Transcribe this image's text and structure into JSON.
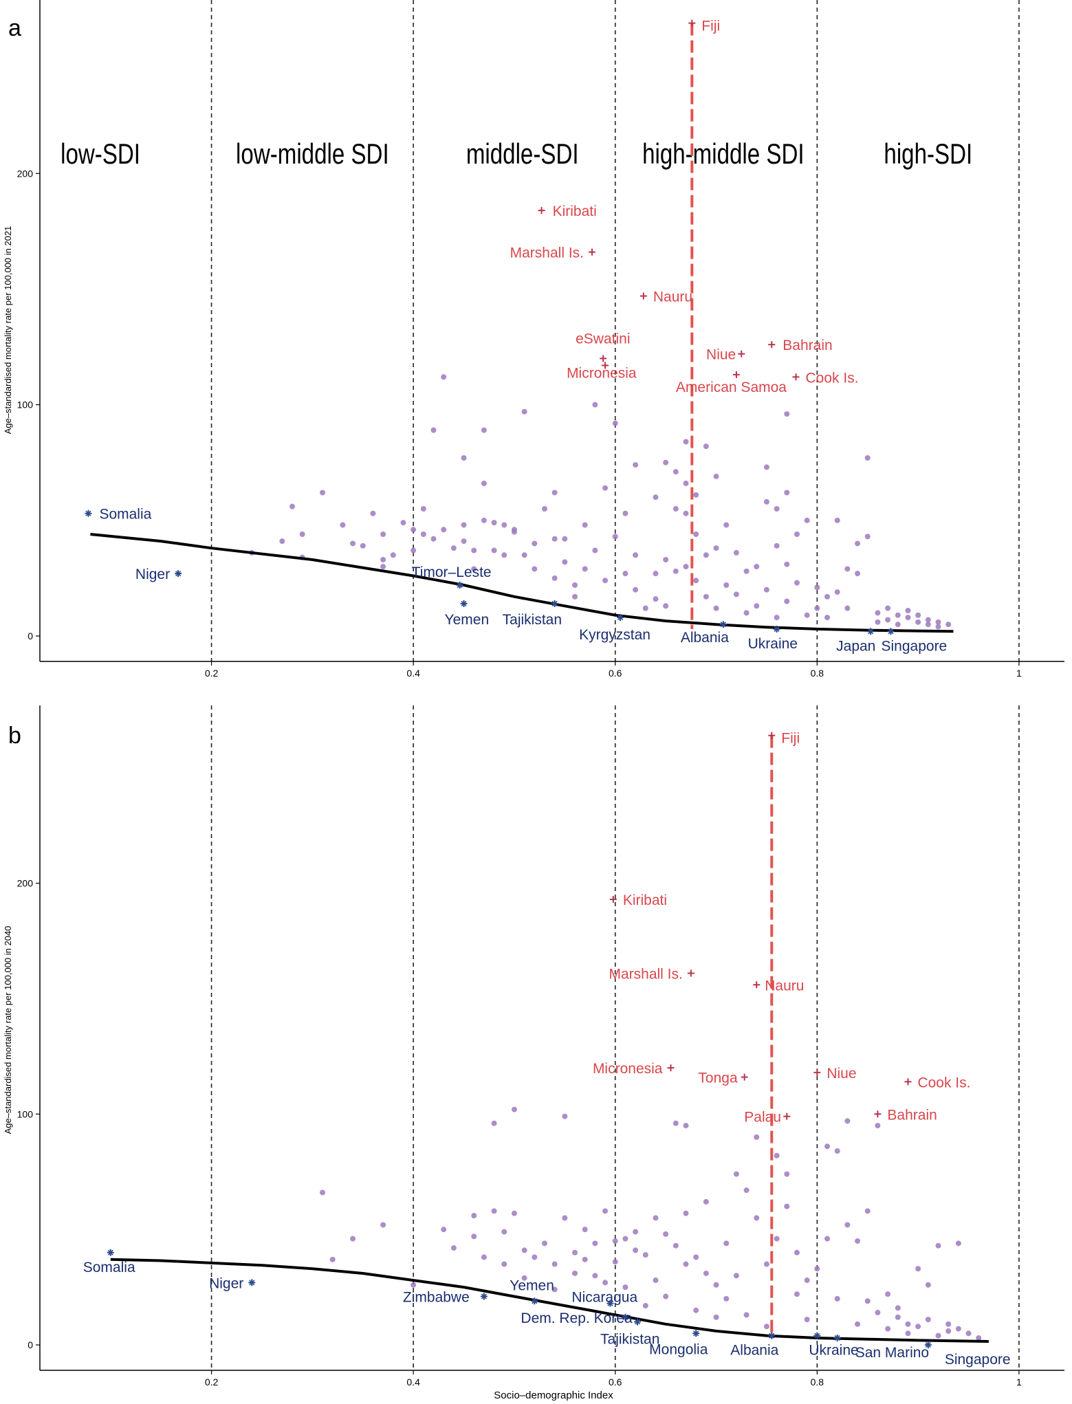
{
  "colors": {
    "grey_point": "#9d79bd",
    "red_label": "#d9474b",
    "red_marker": "#b8334a",
    "blue_label": "#1a2f6e",
    "blue_marker": "#2c4a8c",
    "fit_line": "#000000",
    "ref_line": "#e25450",
    "region_line": "#222222"
  },
  "x_axis": {
    "label": "Socio–demographic Index",
    "ticks": [
      {
        "v": 0.2,
        "label": "0.2"
      },
      {
        "v": 0.4,
        "label": "0.4"
      },
      {
        "v": 0.6,
        "label": "0.6"
      },
      {
        "v": 0.8,
        "label": "0.8"
      },
      {
        "v": 1.0,
        "label": "1"
      }
    ],
    "range": [
      0.03,
      1.045
    ],
    "sdi_boundaries": [
      0.2,
      0.4,
      0.6,
      0.8,
      1.0
    ]
  },
  "chart_data": [
    {
      "panel": "a",
      "type": "scatter",
      "ylabel": "Age–standardised mortality rate per 100,000 in 2021",
      "y_ticks": [
        {
          "v": 0,
          "label": "0"
        },
        {
          "v": 100,
          "label": "100"
        },
        {
          "v": 200,
          "label": "200"
        }
      ],
      "ylim": [
        -11,
        275
      ],
      "regions": [
        {
          "label": "low-SDI",
          "x": 0.09
        },
        {
          "label": "low-middle SDI",
          "x": 0.3
        },
        {
          "label": "middle-SDI",
          "x": 0.508
        },
        {
          "label": "high-middle SDI",
          "x": 0.707
        },
        {
          "label": "high-SDI",
          "x": 0.91
        }
      ],
      "reference_line": {
        "x": 0.676,
        "y0": 3,
        "y1": 265
      },
      "fit_line": [
        [
          0.08,
          44
        ],
        [
          0.15,
          41
        ],
        [
          0.2,
          38
        ],
        [
          0.3,
          33
        ],
        [
          0.4,
          26
        ],
        [
          0.45,
          22
        ],
        [
          0.5,
          17
        ],
        [
          0.55,
          13
        ],
        [
          0.6,
          9
        ],
        [
          0.65,
          6.5
        ],
        [
          0.7,
          5
        ],
        [
          0.75,
          3.8
        ],
        [
          0.8,
          3
        ],
        [
          0.85,
          2.5
        ],
        [
          0.9,
          2.2
        ],
        [
          0.935,
          2
        ]
      ],
      "labeled_high": [
        {
          "name": "Fiji",
          "x": 0.676,
          "y": 265
        },
        {
          "name": "Kiribati",
          "x": 0.527,
          "y": 184
        },
        {
          "name": "Marshall Is.",
          "x": 0.577,
          "y": 166
        },
        {
          "name": "Nauru",
          "x": 0.628,
          "y": 147
        },
        {
          "name": "eSwatini",
          "x": 0.588,
          "y": 120
        },
        {
          "name": "Micronesia",
          "x": 0.59,
          "y": 117
        },
        {
          "name": "Niue",
          "x": 0.725,
          "y": 122
        },
        {
          "name": "Bahrain",
          "x": 0.755,
          "y": 126
        },
        {
          "name": "American Samoa",
          "x": 0.72,
          "y": 113
        },
        {
          "name": "Cook Is.",
          "x": 0.779,
          "y": 112
        }
      ],
      "labeled_low": [
        {
          "name": "Somalia",
          "x": 0.078,
          "y": 53
        },
        {
          "name": "Niger",
          "x": 0.167,
          "y": 27
        },
        {
          "name": "Timor–Leste",
          "x": 0.446,
          "y": 22
        },
        {
          "name": "Yemen",
          "x": 0.45,
          "y": 14
        },
        {
          "name": "Tajikistan",
          "x": 0.54,
          "y": 14
        },
        {
          "name": "Kyrgyzstan",
          "x": 0.605,
          "y": 8
        },
        {
          "name": "Albania",
          "x": 0.707,
          "y": 5
        },
        {
          "name": "Ukraine",
          "x": 0.76,
          "y": 3
        },
        {
          "name": "Japan",
          "x": 0.853,
          "y": 2
        },
        {
          "name": "Singapore",
          "x": 0.873,
          "y": 2
        }
      ],
      "other_points": [
        [
          0.24,
          36
        ],
        [
          0.27,
          41
        ],
        [
          0.28,
          56
        ],
        [
          0.29,
          44
        ],
        [
          0.29,
          34
        ],
        [
          0.31,
          62
        ],
        [
          0.33,
          48
        ],
        [
          0.34,
          40
        ],
        [
          0.35,
          39
        ],
        [
          0.36,
          53
        ],
        [
          0.37,
          44
        ],
        [
          0.37,
          33
        ],
        [
          0.37,
          30
        ],
        [
          0.38,
          35
        ],
        [
          0.39,
          49
        ],
        [
          0.4,
          46
        ],
        [
          0.4,
          37
        ],
        [
          0.41,
          55
        ],
        [
          0.41,
          44
        ],
        [
          0.42,
          89
        ],
        [
          0.42,
          42
        ],
        [
          0.43,
          112
        ],
        [
          0.43,
          46
        ],
        [
          0.44,
          38
        ],
        [
          0.45,
          48
        ],
        [
          0.45,
          41
        ],
        [
          0.45,
          77
        ],
        [
          0.46,
          37
        ],
        [
          0.46,
          29
        ],
        [
          0.47,
          89
        ],
        [
          0.47,
          66
        ],
        [
          0.47,
          50
        ],
        [
          0.48,
          49
        ],
        [
          0.48,
          37
        ],
        [
          0.49,
          48
        ],
        [
          0.49,
          35
        ],
        [
          0.5,
          46
        ],
        [
          0.5,
          45
        ],
        [
          0.51,
          97
        ],
        [
          0.51,
          35
        ],
        [
          0.52,
          40
        ],
        [
          0.52,
          29
        ],
        [
          0.53,
          55
        ],
        [
          0.54,
          62
        ],
        [
          0.54,
          42
        ],
        [
          0.54,
          25
        ],
        [
          0.55,
          42
        ],
        [
          0.55,
          32
        ],
        [
          0.56,
          22
        ],
        [
          0.56,
          17
        ],
        [
          0.57,
          48
        ],
        [
          0.57,
          29
        ],
        [
          0.58,
          100
        ],
        [
          0.58,
          37
        ],
        [
          0.59,
          64
        ],
        [
          0.59,
          24
        ],
        [
          0.6,
          92
        ],
        [
          0.6,
          43
        ],
        [
          0.61,
          53
        ],
        [
          0.61,
          27
        ],
        [
          0.62,
          74
        ],
        [
          0.62,
          35
        ],
        [
          0.62,
          20
        ],
        [
          0.63,
          12
        ],
        [
          0.64,
          60
        ],
        [
          0.64,
          27
        ],
        [
          0.64,
          16
        ],
        [
          0.65,
          75
        ],
        [
          0.65,
          33
        ],
        [
          0.65,
          13
        ],
        [
          0.66,
          71
        ],
        [
          0.66,
          55
        ],
        [
          0.66,
          28
        ],
        [
          0.67,
          84
        ],
        [
          0.67,
          66
        ],
        [
          0.67,
          53
        ],
        [
          0.67,
          30
        ],
        [
          0.68,
          61
        ],
        [
          0.68,
          44
        ],
        [
          0.68,
          24
        ],
        [
          0.69,
          82
        ],
        [
          0.69,
          35
        ],
        [
          0.69,
          17
        ],
        [
          0.7,
          69
        ],
        [
          0.7,
          38
        ],
        [
          0.7,
          12
        ],
        [
          0.71,
          48
        ],
        [
          0.71,
          22
        ],
        [
          0.72,
          36
        ],
        [
          0.72,
          18
        ],
        [
          0.73,
          28
        ],
        [
          0.73,
          10
        ],
        [
          0.74,
          30
        ],
        [
          0.74,
          13
        ],
        [
          0.75,
          73
        ],
        [
          0.75,
          58
        ],
        [
          0.75,
          20
        ],
        [
          0.76,
          55
        ],
        [
          0.76,
          39
        ],
        [
          0.76,
          8
        ],
        [
          0.77,
          96
        ],
        [
          0.77,
          62
        ],
        [
          0.77,
          31
        ],
        [
          0.77,
          15
        ],
        [
          0.78,
          44
        ],
        [
          0.78,
          23
        ],
        [
          0.79,
          50
        ],
        [
          0.79,
          9
        ],
        [
          0.8,
          21
        ],
        [
          0.8,
          12
        ],
        [
          0.81,
          17
        ],
        [
          0.81,
          8
        ],
        [
          0.82,
          50
        ],
        [
          0.82,
          19
        ],
        [
          0.83,
          29
        ],
        [
          0.83,
          12
        ],
        [
          0.84,
          40
        ],
        [
          0.84,
          27
        ],
        [
          0.85,
          77
        ],
        [
          0.85,
          43
        ],
        [
          0.86,
          10
        ],
        [
          0.86,
          6
        ],
        [
          0.87,
          12
        ],
        [
          0.87,
          7
        ],
        [
          0.88,
          9
        ],
        [
          0.88,
          5
        ],
        [
          0.89,
          11
        ],
        [
          0.89,
          8
        ],
        [
          0.9,
          6
        ],
        [
          0.9,
          9
        ],
        [
          0.91,
          5
        ],
        [
          0.91,
          7
        ],
        [
          0.92,
          4
        ],
        [
          0.92,
          6
        ],
        [
          0.93,
          5
        ]
      ]
    },
    {
      "panel": "b",
      "type": "scatter",
      "ylabel": "Age–standardised mortality rate per 100,000 in 2040",
      "y_ticks": [
        {
          "v": 0,
          "label": "0"
        },
        {
          "v": 100,
          "label": "100"
        },
        {
          "v": 200,
          "label": "200"
        }
      ],
      "ylim": [
        -11,
        277
      ],
      "regions": [],
      "reference_line": {
        "x": 0.755,
        "y0": 3,
        "y1": 264
      },
      "fit_line": [
        [
          0.1,
          37
        ],
        [
          0.15,
          36.5
        ],
        [
          0.2,
          35.5
        ],
        [
          0.25,
          34.5
        ],
        [
          0.3,
          33
        ],
        [
          0.35,
          31
        ],
        [
          0.4,
          28
        ],
        [
          0.45,
          25
        ],
        [
          0.5,
          21
        ],
        [
          0.55,
          17
        ],
        [
          0.6,
          13
        ],
        [
          0.65,
          9
        ],
        [
          0.7,
          6
        ],
        [
          0.75,
          4
        ],
        [
          0.8,
          3
        ],
        [
          0.85,
          2.5
        ],
        [
          0.9,
          2
        ],
        [
          0.97,
          1.5
        ]
      ],
      "labeled_high": [
        {
          "name": "Fiji",
          "x": 0.755,
          "y": 264
        },
        {
          "name": "Kiribati",
          "x": 0.598,
          "y": 193
        },
        {
          "name": "Marshall Is.",
          "x": 0.675,
          "y": 161
        },
        {
          "name": "Nauru",
          "x": 0.74,
          "y": 156
        },
        {
          "name": "Micronesia",
          "x": 0.655,
          "y": 120
        },
        {
          "name": "Tonga",
          "x": 0.728,
          "y": 116
        },
        {
          "name": "Niue",
          "x": 0.8,
          "y": 118
        },
        {
          "name": "Cook Is.",
          "x": 0.89,
          "y": 114
        },
        {
          "name": "Palau",
          "x": 0.77,
          "y": 99
        },
        {
          "name": "Bahrain",
          "x": 0.86,
          "y": 100
        }
      ],
      "labeled_low": [
        {
          "name": "Somalia",
          "x": 0.1,
          "y": 40
        },
        {
          "name": "Niger",
          "x": 0.24,
          "y": 27
        },
        {
          "name": "Zimbabwe",
          "x": 0.47,
          "y": 21
        },
        {
          "name": "Yemen",
          "x": 0.52,
          "y": 19
        },
        {
          "name": "Nicaragua",
          "x": 0.595,
          "y": 18
        },
        {
          "name": "Dem. Rep. Korea",
          "x": 0.61,
          "y": 12
        },
        {
          "name": "Tajikistan",
          "x": 0.622,
          "y": 10
        },
        {
          "name": "Mongolia",
          "x": 0.68,
          "y": 5
        },
        {
          "name": "Albania",
          "x": 0.755,
          "y": 4
        },
        {
          "name": "Ukraine",
          "x": 0.8,
          "y": 4
        },
        {
          "name": "San Marino",
          "x": 0.82,
          "y": 3
        },
        {
          "name": "Singapore",
          "x": 0.91,
          "y": 0
        }
      ],
      "other_points": [
        [
          0.31,
          66
        ],
        [
          0.32,
          37
        ],
        [
          0.34,
          46
        ],
        [
          0.37,
          52
        ],
        [
          0.4,
          26
        ],
        [
          0.43,
          50
        ],
        [
          0.44,
          42
        ],
        [
          0.46,
          56
        ],
        [
          0.46,
          47
        ],
        [
          0.47,
          38
        ],
        [
          0.48,
          96
        ],
        [
          0.48,
          58
        ],
        [
          0.49,
          49
        ],
        [
          0.49,
          35
        ],
        [
          0.5,
          102
        ],
        [
          0.5,
          57
        ],
        [
          0.51,
          41
        ],
        [
          0.51,
          29
        ],
        [
          0.52,
          38
        ],
        [
          0.53,
          44
        ],
        [
          0.54,
          35
        ],
        [
          0.54,
          24
        ],
        [
          0.55,
          99
        ],
        [
          0.55,
          55
        ],
        [
          0.56,
          40
        ],
        [
          0.56,
          31
        ],
        [
          0.57,
          50
        ],
        [
          0.57,
          37
        ],
        [
          0.58,
          44
        ],
        [
          0.58,
          30
        ],
        [
          0.59,
          58
        ],
        [
          0.59,
          27
        ],
        [
          0.6,
          45
        ],
        [
          0.6,
          36
        ],
        [
          0.61,
          46
        ],
        [
          0.61,
          25
        ],
        [
          0.62,
          49
        ],
        [
          0.62,
          41
        ],
        [
          0.63,
          39
        ],
        [
          0.63,
          17
        ],
        [
          0.64,
          55
        ],
        [
          0.64,
          28
        ],
        [
          0.65,
          48
        ],
        [
          0.65,
          21
        ],
        [
          0.66,
          96
        ],
        [
          0.66,
          43
        ],
        [
          0.67,
          95
        ],
        [
          0.67,
          57
        ],
        [
          0.67,
          35
        ],
        [
          0.68,
          38
        ],
        [
          0.68,
          15
        ],
        [
          0.69,
          62
        ],
        [
          0.69,
          31
        ],
        [
          0.7,
          26
        ],
        [
          0.7,
          12
        ],
        [
          0.71,
          44
        ],
        [
          0.71,
          20
        ],
        [
          0.72,
          74
        ],
        [
          0.72,
          30
        ],
        [
          0.73,
          67
        ],
        [
          0.73,
          13
        ],
        [
          0.74,
          90
        ],
        [
          0.74,
          55
        ],
        [
          0.75,
          35
        ],
        [
          0.75,
          8
        ],
        [
          0.76,
          82
        ],
        [
          0.76,
          46
        ],
        [
          0.77,
          74
        ],
        [
          0.77,
          60
        ],
        [
          0.78,
          40
        ],
        [
          0.78,
          22
        ],
        [
          0.79,
          28
        ],
        [
          0.79,
          11
        ],
        [
          0.8,
          33
        ],
        [
          0.81,
          86
        ],
        [
          0.81,
          46
        ],
        [
          0.82,
          84
        ],
        [
          0.82,
          20
        ],
        [
          0.83,
          97
        ],
        [
          0.83,
          52
        ],
        [
          0.84,
          45
        ],
        [
          0.84,
          9
        ],
        [
          0.85,
          58
        ],
        [
          0.85,
          19
        ],
        [
          0.86,
          14
        ],
        [
          0.86,
          95
        ],
        [
          0.87,
          22
        ],
        [
          0.87,
          7
        ],
        [
          0.88,
          12
        ],
        [
          0.88,
          16
        ],
        [
          0.89,
          9
        ],
        [
          0.89,
          5
        ],
        [
          0.9,
          33
        ],
        [
          0.9,
          8
        ],
        [
          0.91,
          26
        ],
        [
          0.91,
          11
        ],
        [
          0.92,
          43
        ],
        [
          0.92,
          4
        ],
        [
          0.93,
          9
        ],
        [
          0.93,
          6
        ],
        [
          0.94,
          44
        ],
        [
          0.94,
          7
        ],
        [
          0.95,
          5
        ],
        [
          0.96,
          3
        ]
      ]
    }
  ],
  "panels": {
    "a": {
      "letter": "a"
    },
    "b": {
      "letter": "b"
    }
  }
}
